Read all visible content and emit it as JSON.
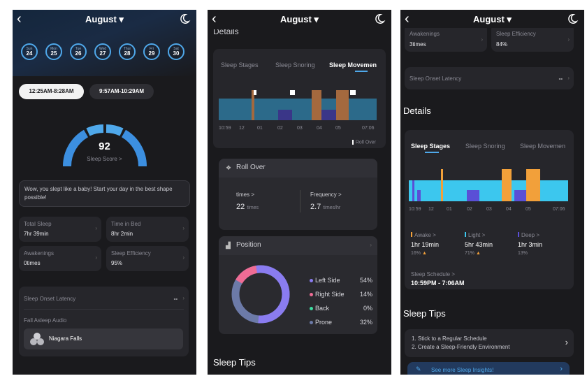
{
  "colors": {
    "accent": "#4fa8ea",
    "awake": "#f2a03a",
    "light": "#3cc7ee",
    "deep": "#5a4fd6",
    "pink": "#ef6c95",
    "roll": "#c88a4e"
  },
  "header": {
    "month": "August",
    "back_icon": "chevron-left-icon",
    "mode_icon": "moon-icon"
  },
  "screen1": {
    "days": [
      {
        "name": "Sun",
        "num": "24"
      },
      {
        "name": "Mon",
        "num": "25"
      },
      {
        "name": "Tue",
        "num": "26"
      },
      {
        "name": "Wed",
        "num": "27"
      },
      {
        "name": "Thur",
        "num": "28"
      },
      {
        "name": "Fri",
        "num": "29"
      },
      {
        "name": "Sat",
        "num": "30"
      }
    ],
    "session_active": "12:25AM-8:28AM",
    "session_other": "9:57AM-10:29AM",
    "score": "92",
    "score_label": "Sleep Score >",
    "message": "Wow, you slept like a baby! Start your day in the best shape possible!",
    "stats": [
      {
        "label": "Total Sleep",
        "value": "7hr 39min"
      },
      {
        "label": "Time in Bed",
        "value": "8hr 2min"
      },
      {
        "label": "Awakenings",
        "value": "0times"
      },
      {
        "label": "Sleep Efficiency",
        "value": "95%"
      }
    ],
    "onset_label": "Sleep Onset Latency",
    "onset_value": "--",
    "audio_label": "Fall Asleep Audio",
    "audio_track": "Niagara Falls"
  },
  "screen2": {
    "section_cut": "Details",
    "tabs": [
      "Sleep Stages",
      "Sleep Snoring",
      "Sleep Movemen"
    ],
    "ticks": [
      "10:59",
      "12",
      "01",
      "02",
      "03",
      "04",
      "05",
      "07:06"
    ],
    "legend": "Roll Over",
    "rollover_title": "Roll Over",
    "times_label": "times >",
    "times_value": "22",
    "times_unit": "times",
    "freq_label": "Frequency >",
    "freq_value": "2.7",
    "freq_unit": "times/hr",
    "position_title": "Position",
    "positions": [
      {
        "name": "Left Side",
        "value": "54%",
        "color": "#8a7cf0"
      },
      {
        "name": "Right Side",
        "value": "14%",
        "color": "#ef6c95"
      },
      {
        "name": "Back",
        "value": "0%",
        "color": "#3cdca0"
      },
      {
        "name": "Prone",
        "value": "32%",
        "color": "#6c7aa8"
      }
    ],
    "tips_title": "Sleep Tips"
  },
  "screen3": {
    "stats_top": [
      {
        "label": "Awakenings",
        "value": "3times"
      },
      {
        "label": "Sleep Efficiency",
        "value": "84%"
      }
    ],
    "onset_label": "Sleep Onset Latency",
    "onset_value": "--",
    "details_title": "Details",
    "tabs": [
      "Sleep Stages",
      "Sleep Snoring",
      "Sleep Movemen"
    ],
    "ticks": [
      "10:59",
      "12",
      "01",
      "02",
      "03",
      "04",
      "05",
      "07:06"
    ],
    "stages": [
      {
        "name": "Awake >",
        "value": "1hr 19min",
        "pct": "16%",
        "color": "#f2a03a"
      },
      {
        "name": "Light >",
        "value": "5hr 43min",
        "pct": "71%",
        "color": "#3cc7ee"
      },
      {
        "name": "Deep >",
        "value": "1hr 3min",
        "pct": "13%",
        "color": "#5a4fd6"
      }
    ],
    "schedule_label": "Sleep Schedule >",
    "schedule_value": "10:59PM - 7:06AM",
    "tips_title": "Sleep Tips",
    "tip1": "1. Stick to a Regular Schedule",
    "tip2": "2. Create a Sleep-Friendly Environment",
    "more": "See more Sleep Insights!"
  }
}
